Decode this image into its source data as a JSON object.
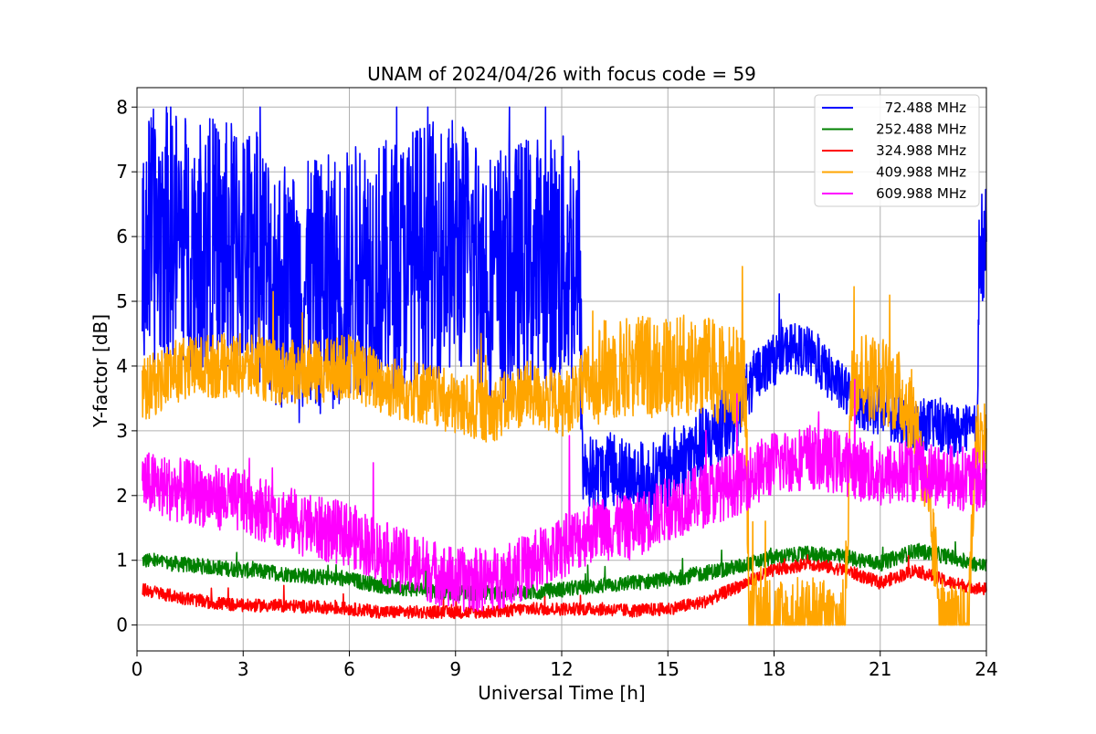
{
  "chart_data": {
    "type": "line",
    "title": "UNAM of 2024/04/26 with focus code = 59",
    "xlabel": "Universal Time [h]",
    "ylabel": "Y-factor [dB]",
    "xlim": [
      0,
      24
    ],
    "ylim": [
      -0.4,
      8.3
    ],
    "xticks": [
      0,
      3,
      6,
      9,
      12,
      15,
      18,
      21,
      24
    ],
    "yticks": [
      0,
      1,
      2,
      3,
      4,
      5,
      6,
      7,
      8
    ],
    "grid": true,
    "legend_position": "top-right",
    "series": [
      {
        "name": "72.488 MHz",
        "color": "#0000ff",
        "points": [
          [
            0.15,
            5.8
          ],
          [
            0.5,
            6.0
          ],
          [
            1.0,
            6.1
          ],
          [
            1.5,
            5.9
          ],
          [
            2.0,
            5.9
          ],
          [
            2.5,
            5.8
          ],
          [
            3.0,
            5.9
          ],
          [
            3.5,
            5.6
          ],
          [
            4.0,
            5.3
          ],
          [
            4.5,
            5.1
          ],
          [
            5.0,
            5.2
          ],
          [
            5.5,
            5.3
          ],
          [
            6.0,
            5.4
          ],
          [
            6.5,
            5.6
          ],
          [
            7.0,
            5.5
          ],
          [
            7.5,
            5.6
          ],
          [
            8.0,
            5.8
          ],
          [
            8.5,
            5.8
          ],
          [
            9.0,
            5.9
          ],
          [
            9.5,
            5.7
          ],
          [
            10.0,
            5.4
          ],
          [
            10.5,
            5.4
          ],
          [
            11.0,
            5.6
          ],
          [
            11.5,
            5.6
          ],
          [
            12.0,
            5.6
          ],
          [
            12.5,
            5.6
          ],
          [
            12.6,
            2.4
          ],
          [
            13.0,
            2.3
          ],
          [
            13.5,
            2.4
          ],
          [
            14.0,
            2.3
          ],
          [
            14.5,
            2.2
          ],
          [
            15.0,
            2.4
          ],
          [
            15.5,
            2.6
          ],
          [
            16.0,
            2.8
          ],
          [
            16.5,
            3.0
          ],
          [
            17.0,
            3.3
          ],
          [
            17.5,
            3.9
          ],
          [
            18.0,
            4.1
          ],
          [
            18.5,
            4.3
          ],
          [
            19.0,
            4.2
          ],
          [
            19.5,
            3.9
          ],
          [
            20.0,
            3.6
          ],
          [
            20.5,
            3.4
          ],
          [
            21.0,
            3.3
          ],
          [
            21.5,
            3.2
          ],
          [
            22.0,
            3.1
          ],
          [
            22.5,
            3.1
          ],
          [
            23.0,
            3.0
          ],
          [
            23.5,
            3.0
          ],
          [
            23.75,
            3.0
          ],
          [
            23.8,
            5.8
          ],
          [
            24.0,
            5.8
          ]
        ],
        "spread": [
          [
            0.15,
            2.0
          ],
          [
            12.5,
            2.0
          ],
          [
            12.6,
            0.6
          ],
          [
            17.0,
            0.6
          ],
          [
            17.5,
            0.4
          ],
          [
            23.75,
            0.4
          ],
          [
            23.8,
            1.0
          ],
          [
            24.0,
            1.0
          ]
        ]
      },
      {
        "name": "252.488 MHz",
        "color": "#008000",
        "points": [
          [
            0.15,
            1.0
          ],
          [
            1.0,
            0.95
          ],
          [
            2.0,
            0.9
          ],
          [
            3.0,
            0.85
          ],
          [
            4.0,
            0.8
          ],
          [
            5.0,
            0.75
          ],
          [
            6.0,
            0.7
          ],
          [
            7.0,
            0.6
          ],
          [
            8.0,
            0.55
          ],
          [
            9.0,
            0.5
          ],
          [
            10.0,
            0.5
          ],
          [
            11.0,
            0.5
          ],
          [
            12.0,
            0.55
          ],
          [
            13.0,
            0.6
          ],
          [
            14.0,
            0.65
          ],
          [
            15.0,
            0.7
          ],
          [
            16.0,
            0.8
          ],
          [
            17.0,
            0.9
          ],
          [
            18.0,
            1.05
          ],
          [
            19.0,
            1.1
          ],
          [
            20.0,
            1.05
          ],
          [
            21.0,
            0.95
          ],
          [
            22.0,
            1.15
          ],
          [
            23.0,
            1.05
          ],
          [
            24.0,
            0.9
          ]
        ],
        "spread": [
          [
            0.15,
            0.12
          ],
          [
            24.0,
            0.12
          ]
        ]
      },
      {
        "name": "324.988 MHz",
        "color": "#ff0000",
        "points": [
          [
            0.15,
            0.55
          ],
          [
            1.0,
            0.45
          ],
          [
            2.0,
            0.35
          ],
          [
            3.0,
            0.3
          ],
          [
            4.0,
            0.3
          ],
          [
            5.0,
            0.28
          ],
          [
            6.0,
            0.25
          ],
          [
            7.0,
            0.2
          ],
          [
            8.0,
            0.2
          ],
          [
            9.0,
            0.2
          ],
          [
            10.0,
            0.2
          ],
          [
            11.0,
            0.25
          ],
          [
            12.0,
            0.25
          ],
          [
            13.0,
            0.25
          ],
          [
            14.0,
            0.22
          ],
          [
            15.0,
            0.25
          ],
          [
            16.0,
            0.35
          ],
          [
            17.0,
            0.6
          ],
          [
            18.0,
            0.85
          ],
          [
            19.0,
            0.95
          ],
          [
            20.0,
            0.85
          ],
          [
            21.0,
            0.65
          ],
          [
            22.0,
            0.85
          ],
          [
            23.0,
            0.65
          ],
          [
            24.0,
            0.55
          ]
        ],
        "spread": [
          [
            0.15,
            0.1
          ],
          [
            24.0,
            0.1
          ]
        ]
      },
      {
        "name": "409.988 MHz",
        "color": "#ffa500",
        "points": [
          [
            0.15,
            3.6
          ],
          [
            1.0,
            3.9
          ],
          [
            2.0,
            4.0
          ],
          [
            3.0,
            4.0
          ],
          [
            4.0,
            3.9
          ],
          [
            5.0,
            3.9
          ],
          [
            6.0,
            4.0
          ],
          [
            7.0,
            3.7
          ],
          [
            8.0,
            3.6
          ],
          [
            9.0,
            3.4
          ],
          [
            10.0,
            3.3
          ],
          [
            11.0,
            3.6
          ],
          [
            12.0,
            3.4
          ],
          [
            12.5,
            3.6
          ],
          [
            13.0,
            3.9
          ],
          [
            14.0,
            4.0
          ],
          [
            15.0,
            4.0
          ],
          [
            16.0,
            4.0
          ],
          [
            17.0,
            3.8
          ],
          [
            17.2,
            3.6
          ],
          [
            17.3,
            0.0
          ],
          [
            20.0,
            0.0
          ],
          [
            20.2,
            3.9
          ],
          [
            21.0,
            3.8
          ],
          [
            21.5,
            3.6
          ],
          [
            22.0,
            3.2
          ],
          [
            22.8,
            0.0
          ],
          [
            23.5,
            0.0
          ],
          [
            23.7,
            2.9
          ],
          [
            24.0,
            2.9
          ]
        ],
        "spread": [
          [
            0.15,
            0.5
          ],
          [
            12.5,
            0.5
          ],
          [
            13.0,
            0.8
          ],
          [
            17.0,
            0.8
          ],
          [
            24.0,
            0.6
          ]
        ]
      },
      {
        "name": "609.988 MHz",
        "color": "#ff00ff",
        "points": [
          [
            0.15,
            2.2
          ],
          [
            1.0,
            2.1
          ],
          [
            2.0,
            2.0
          ],
          [
            3.0,
            1.9
          ],
          [
            4.0,
            1.7
          ],
          [
            5.0,
            1.5
          ],
          [
            6.0,
            1.4
          ],
          [
            7.0,
            1.1
          ],
          [
            8.0,
            0.9
          ],
          [
            9.0,
            0.7
          ],
          [
            10.0,
            0.7
          ],
          [
            11.0,
            0.9
          ],
          [
            12.0,
            1.2
          ],
          [
            13.0,
            1.5
          ],
          [
            14.0,
            1.5
          ],
          [
            15.0,
            1.8
          ],
          [
            16.0,
            2.0
          ],
          [
            17.0,
            2.2
          ],
          [
            18.0,
            2.5
          ],
          [
            19.0,
            2.6
          ],
          [
            20.0,
            2.5
          ],
          [
            21.0,
            2.3
          ],
          [
            22.0,
            2.4
          ],
          [
            23.0,
            2.3
          ],
          [
            24.0,
            2.2
          ]
        ],
        "spread": [
          [
            0.15,
            0.5
          ],
          [
            24.0,
            0.5
          ]
        ]
      }
    ]
  }
}
